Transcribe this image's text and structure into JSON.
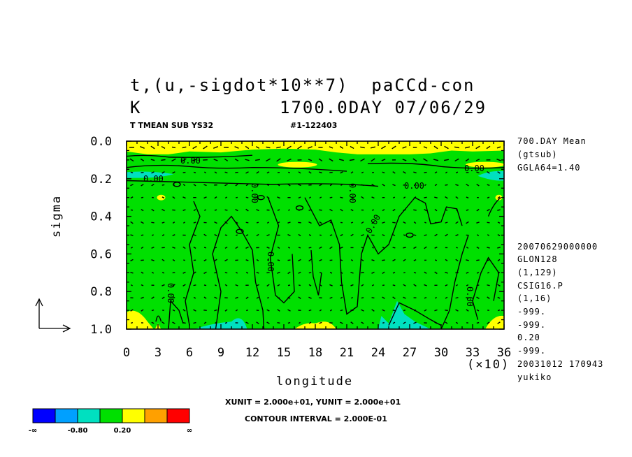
{
  "title": {
    "line1": "t,(u,-sigdot*10**7)  paCCd-con",
    "line2_left": "K",
    "line2_right": "1700.0DAY 07/06/29",
    "sub_left": "T TMEAN SUB YS32",
    "sub_right": "#1-122403"
  },
  "right_info": [
    "700.DAY Mean",
    "(gtsub)",
    "GGLA64=1.40",
    "20070629000000",
    "GLON128",
    "(1,129)",
    "CSIG16.P",
    "(1,16)",
    "-999.",
    "-999.",
    "0.20",
    "-999.",
    "20031012 170943",
    "yukiko"
  ],
  "bottom": {
    "units": "XUNIT = 2.000e+01, YUNIT = 2.000e+01",
    "contour_interval": "CONTOUR INTERVAL = 2.000E-01"
  },
  "contour_labels": [
    "0.00",
    "0.00",
    "0.00",
    "0.00",
    "0.00",
    "0.00",
    "0.00",
    "0.00",
    "0.00",
    "0.00"
  ],
  "colorbar": {
    "colors": [
      "#0000ff",
      "#00a0ff",
      "#00e0c0",
      "#00e000",
      "#ffff00",
      "#ffa000",
      "#ff0000"
    ],
    "labels": [
      "-∞",
      "-0.80",
      "0.20",
      "∞"
    ]
  },
  "chart_data": {
    "type": "heatmap",
    "xlabel": "longitude",
    "ylabel": "sigma",
    "x_multiplier": "(×10)",
    "xlim": [
      0,
      36
    ],
    "ylim": [
      1.0,
      0.0
    ],
    "x_ticks": [
      "0",
      "3",
      "6",
      "9",
      "12",
      "15",
      "18",
      "21",
      "24",
      "27",
      "30",
      "33",
      "36"
    ],
    "y_ticks": [
      "0.0",
      "0.2",
      "0.4",
      "0.6",
      "0.8",
      "1.0"
    ],
    "field_base_color": "#00e000",
    "regions": [
      {
        "color": "#ffff00",
        "desc": "upper band",
        "sigma": [
          0.0,
          0.07
        ]
      },
      {
        "color": "#00e0c0",
        "desc": "west band",
        "x": [
          0,
          4.5
        ],
        "sigma": [
          0.15,
          0.2
        ]
      },
      {
        "color": "#00e0c0",
        "desc": "east band",
        "x": [
          33.5,
          36
        ],
        "sigma": [
          0.15,
          0.21
        ]
      },
      {
        "color": "#ffff00",
        "desc": "surface west",
        "x": [
          0,
          3
        ],
        "sigma": [
          0.9,
          1.0
        ]
      },
      {
        "color": "#ffff00",
        "desc": "surface east",
        "x": [
          34,
          36
        ],
        "sigma": [
          0.93,
          1.0
        ]
      },
      {
        "color": "#00e0c0",
        "desc": "surface",
        "x": [
          6.5,
          11.5
        ],
        "sigma": [
          0.95,
          1.0
        ]
      },
      {
        "color": "#00e0c0",
        "desc": "surface",
        "x": [
          24,
          29
        ],
        "sigma": [
          0.85,
          1.0
        ]
      },
      {
        "color": "#ffff00",
        "desc": "surface",
        "x": [
          16,
          20
        ],
        "sigma": [
          0.96,
          1.0
        ]
      }
    ],
    "vector_grid": {
      "nx": 36,
      "ny": 15
    }
  }
}
